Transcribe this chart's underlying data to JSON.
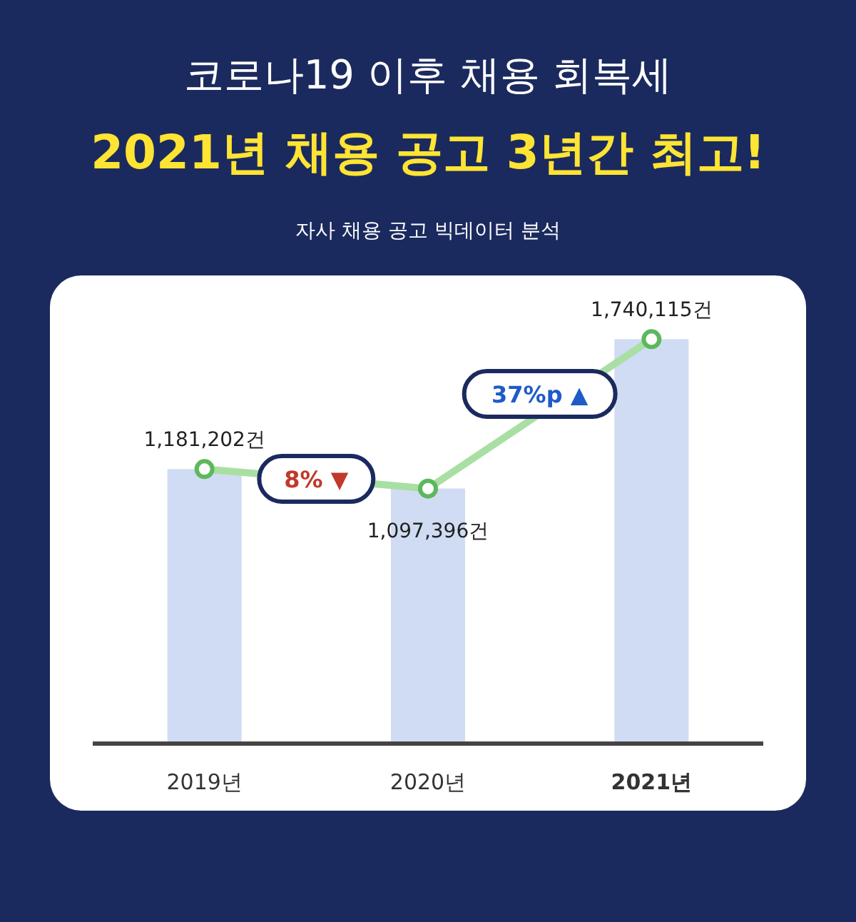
{
  "chart_data": {
    "type": "bar",
    "title": "코로나19 이후 채용 회복세",
    "subtitle": "2021년 채용 공고 3년간 최고!",
    "categories": [
      "2019년",
      "2020년",
      "2021년"
    ],
    "tick_labels": "x",
    "series": [
      {
        "color": "#cfdcf3",
        "values": [
          1181202,
          1097396,
          1740115
        ]
      },
      {
        "type": "line",
        "color": "#a9dfa3",
        "marker": "circle",
        "values": [
          1181202,
          1097396,
          1740115
        ],
        "value_labels": [
          "1,181,202건",
          "1,097,396건",
          "1,740,115건"
        ]
      }
    ],
    "annotations": [
      "자사 채용 공고 빅데이터 분석",
      "8% ▼",
      "37%p ▲"
    ]
  }
}
